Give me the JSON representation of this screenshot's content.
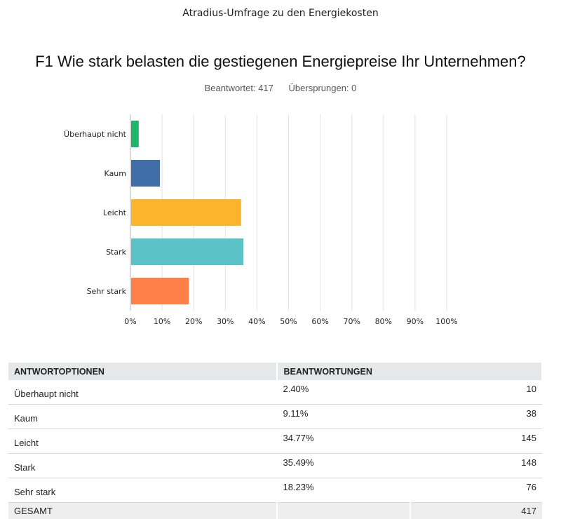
{
  "survey_title": "Atradius-Umfrage zu den Energiekosten",
  "question": "F1 Wie stark belasten die gestiegenen Energiepreise Ihr Unternehmen?",
  "answered": "Beantwortet: 417",
  "skipped": "Übersprungen: 0",
  "chart_data": {
    "type": "bar",
    "orientation": "horizontal",
    "categories": [
      "Überhaupt nicht",
      "Kaum",
      "Leicht",
      "Stark",
      "Sehr stark"
    ],
    "values": [
      2.4,
      9.11,
      34.77,
      35.49,
      18.23
    ],
    "colors": [
      "#1fb66b",
      "#3f6ea8",
      "#fbb42b",
      "#5bc2c7",
      "#ff7f4a"
    ],
    "xlim": [
      0,
      100
    ],
    "xticks": [
      "0%",
      "10%",
      "20%",
      "30%",
      "40%",
      "50%",
      "60%",
      "70%",
      "80%",
      "90%",
      "100%"
    ],
    "grid": true
  },
  "table": {
    "headers": [
      "ANTWORTOPTIONEN",
      "BEANTWORTUNGEN"
    ],
    "rows": [
      {
        "option": "Überhaupt nicht",
        "pct": "2.40%",
        "count": "10"
      },
      {
        "option": "Kaum",
        "pct": "9.11%",
        "count": "38"
      },
      {
        "option": "Leicht",
        "pct": "34.77%",
        "count": "145"
      },
      {
        "option": "Stark",
        "pct": "35.49%",
        "count": "148"
      },
      {
        "option": "Sehr stark",
        "pct": "18.23%",
        "count": "76"
      }
    ],
    "total_label": "GESAMT",
    "total_count": "417"
  }
}
